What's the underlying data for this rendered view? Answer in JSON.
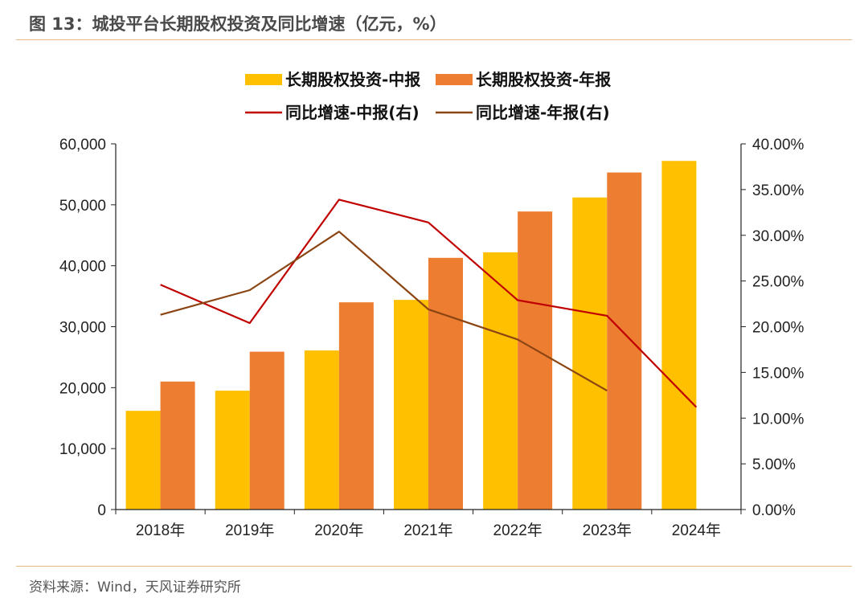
{
  "title": "图 13：城投平台长期股权投资及同比增速（亿元，%）",
  "source": "资料来源：Wind，天风证券研究所",
  "colors": {
    "bar_mid": "#ffc000",
    "bar_annual": "#ed7d31",
    "line_mid": "#c00000",
    "line_annual": "#8b4513",
    "axis": "#222222",
    "rule": "#e6b886"
  },
  "chart_data": {
    "type": "bar",
    "title": "",
    "categories": [
      "2018年",
      "2019年",
      "2020年",
      "2021年",
      "2022年",
      "2023年",
      "2024年"
    ],
    "y_left": {
      "ylim": [
        0,
        60000
      ],
      "ticks": [
        "0",
        "10,000",
        "20,000",
        "30,000",
        "40,000",
        "50,000",
        "60,000"
      ]
    },
    "y_right": {
      "ylim": [
        0,
        0.4
      ],
      "ticks": [
        "0.00%",
        "5.00%",
        "10.00%",
        "15.00%",
        "20.00%",
        "25.00%",
        "30.00%",
        "35.00%",
        "40.00%"
      ]
    },
    "series": [
      {
        "name": "长期股权投资-中报",
        "kind": "bar",
        "axis": "left",
        "values": [
          16200,
          19500,
          26100,
          34400,
          42200,
          51200,
          57200
        ]
      },
      {
        "name": "长期股权投资-年报",
        "kind": "bar",
        "axis": "left",
        "values": [
          21000,
          25900,
          34000,
          41300,
          48900,
          55300,
          null
        ]
      },
      {
        "name": "同比增速-中报(右)",
        "kind": "line",
        "axis": "right",
        "values": [
          0.246,
          0.204,
          0.339,
          0.314,
          0.229,
          0.212,
          0.112
        ]
      },
      {
        "name": "同比增速-年报(右)",
        "kind": "line",
        "axis": "right",
        "values": [
          0.213,
          0.24,
          0.304,
          0.219,
          0.186,
          0.13,
          null
        ]
      }
    ],
    "legend_position": "top",
    "grid": false
  }
}
